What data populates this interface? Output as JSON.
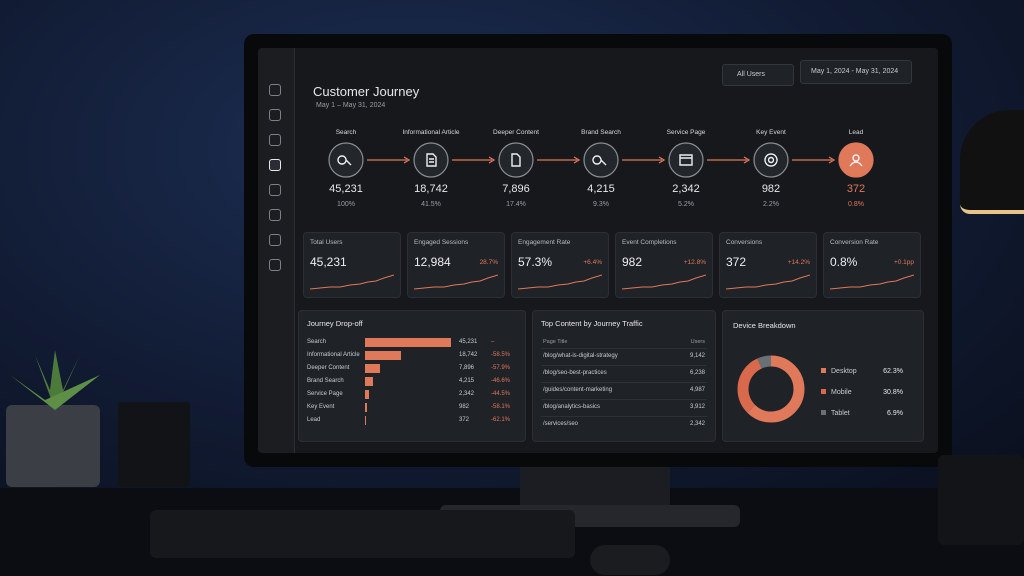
{
  "header": {
    "title": "Customer Journey",
    "date_range": "May 1 – May 31, 2024",
    "segment": "All Users",
    "date_picker": "May 1, 2024 - May 31, 2024"
  },
  "journey": {
    "steps": [
      {
        "name": "Search",
        "count": "45,231",
        "share": "100%"
      },
      {
        "name": "Informational Article",
        "count": "18,742",
        "share": "41.5%"
      },
      {
        "name": "Deeper Content",
        "count": "7,896",
        "share": "17.4%"
      },
      {
        "name": "Brand Search",
        "count": "4,215",
        "share": "9.3%"
      },
      {
        "name": "Service Page",
        "count": "2,342",
        "share": "5.2%"
      },
      {
        "name": "Key Event",
        "count": "982",
        "share": "2.2%"
      },
      {
        "name": "Lead",
        "count": "372",
        "share": "0.8%"
      }
    ]
  },
  "kpis": [
    {
      "label": "Total Users",
      "value": "45,231"
    },
    {
      "label": "Engaged Sessions",
      "value": "12,984",
      "change": "28.7%"
    },
    {
      "label": "Engagement Rate",
      "value": "57.3%",
      "change": "+6.4%"
    },
    {
      "label": "Event Completions",
      "value": "982",
      "change": "+12.8%"
    },
    {
      "label": "Conversions",
      "value": "372",
      "change": "+14.2%"
    },
    {
      "label": "Conversion Rate",
      "value": "0.8%",
      "change": "+0.1pp"
    }
  ],
  "dropoff": {
    "title": "Journey Drop-off",
    "color": "#e0785a",
    "rows": [
      {
        "step": "Search",
        "value": 45231,
        "value_label": "45,231",
        "change": "–"
      },
      {
        "step": "Informational Article",
        "value": 18742,
        "value_label": "18,742",
        "change": "-58.5%"
      },
      {
        "step": "Deeper Content",
        "value": 7896,
        "value_label": "7,896",
        "change": "-57.9%"
      },
      {
        "step": "Brand Search",
        "value": 4215,
        "value_label": "4,215",
        "change": "-46.6%"
      },
      {
        "step": "Service Page",
        "value": 2342,
        "value_label": "2,342",
        "change": "-44.5%"
      },
      {
        "step": "Key Event",
        "value": 982,
        "value_label": "982",
        "change": "-58.1%"
      },
      {
        "step": "Lead",
        "value": 372,
        "value_label": "372",
        "change": "-62.1%"
      }
    ]
  },
  "top_content": {
    "title": "Top Content by Journey Traffic",
    "columns": [
      "Page Title",
      "Users"
    ],
    "rows": [
      [
        "/blog/what-is-digital-strategy",
        "9,142"
      ],
      [
        "/blog/seo-best-practices",
        "6,238"
      ],
      [
        "/guides/content-marketing",
        "4,987"
      ],
      [
        "/blog/analytics-basics",
        "3,912"
      ],
      [
        "/services/seo",
        "2,342"
      ]
    ]
  },
  "devices": {
    "title": "Device Breakdown",
    "type": "pie",
    "categories": [
      "Desktop",
      "Mobile",
      "Tablet"
    ],
    "values": [
      62.3,
      30.8,
      6.9
    ],
    "value_labels": [
      "62.3%",
      "30.8%",
      "6.9%"
    ],
    "colors": [
      "#e0785a",
      "#d9694c",
      "#6b7077"
    ]
  }
}
